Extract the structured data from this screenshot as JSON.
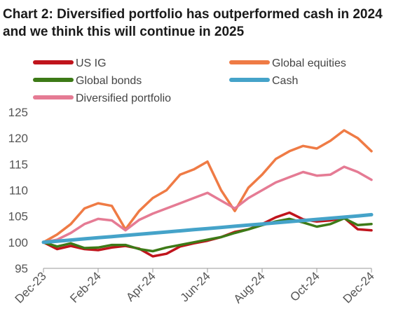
{
  "title": {
    "prefix": "Chart 2:",
    "text": "Diversified portfolio has outperformed cash in 2024 and we think this will continue in 2025"
  },
  "chart_data": {
    "type": "line",
    "title": "Chart 2: Diversified portfolio has outperformed cash in 2024 and we think this will continue in 2025",
    "xlabel": "",
    "ylabel": "",
    "ylim": [
      95,
      125
    ],
    "yticks": [
      95,
      100,
      105,
      110,
      115,
      120,
      125
    ],
    "xticks": [
      "Dec-23",
      "Feb-24",
      "Apr-24",
      "Jun-24",
      "Aug-24",
      "Oct-24",
      "Dec-24"
    ],
    "x": [
      0,
      0.5,
      1,
      1.5,
      2,
      2.5,
      3,
      3.5,
      4,
      4.5,
      5,
      5.5,
      6,
      6.5,
      7,
      7.5,
      8,
      8.5,
      9,
      9.5,
      10,
      10.5,
      11,
      11.5,
      12
    ],
    "grid": false,
    "legend_position": "top",
    "series": [
      {
        "name": "US IG",
        "color": "#c0141c",
        "values": [
          100,
          98.7,
          99.3,
          98.7,
          98.5,
          99.0,
          99.3,
          98.8,
          97.3,
          97.8,
          99.2,
          99.8,
          100.3,
          101.0,
          102.0,
          102.5,
          103.5,
          104.8,
          105.7,
          104.4,
          104.0,
          104.2,
          104.7,
          102.5,
          102.3
        ]
      },
      {
        "name": "Global equities",
        "color": "#ef7b45",
        "values": [
          100,
          101.5,
          103.5,
          106.5,
          107.5,
          107.0,
          102.5,
          106.0,
          108.5,
          110.0,
          113.0,
          114.0,
          115.5,
          110.0,
          106.0,
          110.5,
          113.0,
          116.0,
          117.5,
          118.5,
          118.0,
          119.5,
          121.5,
          120.0,
          117.5
        ]
      },
      {
        "name": "Global bonds",
        "color": "#3d7a17",
        "values": [
          100,
          99.2,
          99.8,
          98.9,
          99.0,
          99.5,
          99.5,
          98.7,
          98.3,
          99.0,
          99.5,
          100.0,
          100.5,
          101.0,
          101.8,
          102.5,
          103.3,
          104.0,
          104.5,
          103.8,
          103.0,
          103.5,
          104.6,
          103.3,
          103.5
        ]
      },
      {
        "name": "Cash",
        "color": "#45a3c9",
        "values": [
          100,
          100.22,
          100.44,
          100.66,
          100.88,
          101.1,
          101.32,
          101.54,
          101.76,
          101.98,
          102.2,
          102.42,
          102.64,
          102.86,
          103.08,
          103.3,
          103.52,
          103.74,
          103.96,
          104.18,
          104.4,
          104.62,
          104.84,
          105.06,
          105.3
        ]
      },
      {
        "name": "Diversified portfolio",
        "color": "#e57b94",
        "values": [
          100,
          100.5,
          101.8,
          103.5,
          104.5,
          104.2,
          102.3,
          104.3,
          105.5,
          106.5,
          107.5,
          108.5,
          109.5,
          108.0,
          106.5,
          108.5,
          110.0,
          111.5,
          112.5,
          113.5,
          112.8,
          113.0,
          114.5,
          113.5,
          112.0
        ]
      }
    ]
  }
}
